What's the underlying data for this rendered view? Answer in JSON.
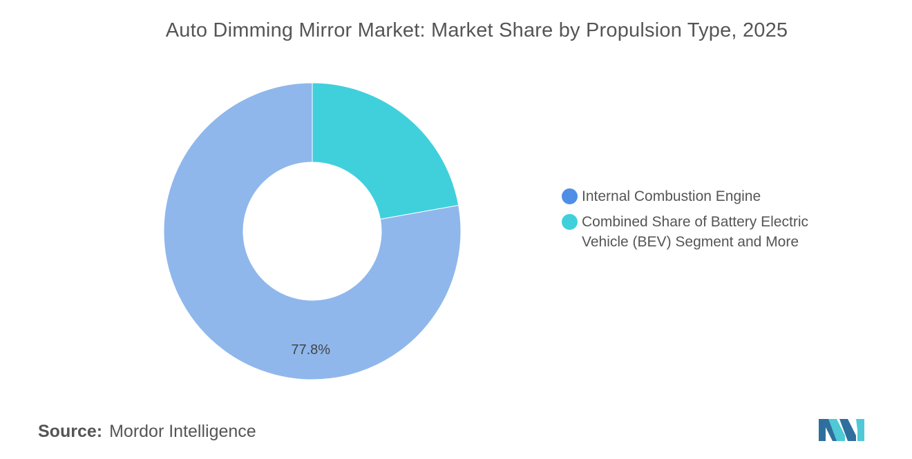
{
  "chart_data": {
    "type": "pie",
    "title": "Auto Dimming Mirror Market: Market Share by Propulsion Type, 2025",
    "donut": true,
    "slices": [
      {
        "name": "Internal Combustion Engine",
        "value": 77.8,
        "label": "77.8%",
        "color": "#8fb7ec",
        "legend_color": "#4f8ee6"
      },
      {
        "name": "Combined Share of Battery Electric Vehicle (BEV) Segment and More",
        "value": 22.2,
        "label": "",
        "color": "#40d0dc",
        "legend_color": "#40d0dc"
      }
    ],
    "legend_position": "right"
  },
  "legend": {
    "items": [
      {
        "label": "Internal Combustion Engine",
        "color": "#4f8ee6"
      },
      {
        "label": "Combined Share of Battery Electric Vehicle (BEV) Segment and More",
        "color": "#40d0dc"
      }
    ]
  },
  "source": {
    "key": "Source:",
    "value": "Mordor Intelligence"
  },
  "logo": {
    "icon": "mordor-intelligence-logo-icon",
    "colors": [
      "#2f6f9f",
      "#4fc9d6"
    ]
  }
}
